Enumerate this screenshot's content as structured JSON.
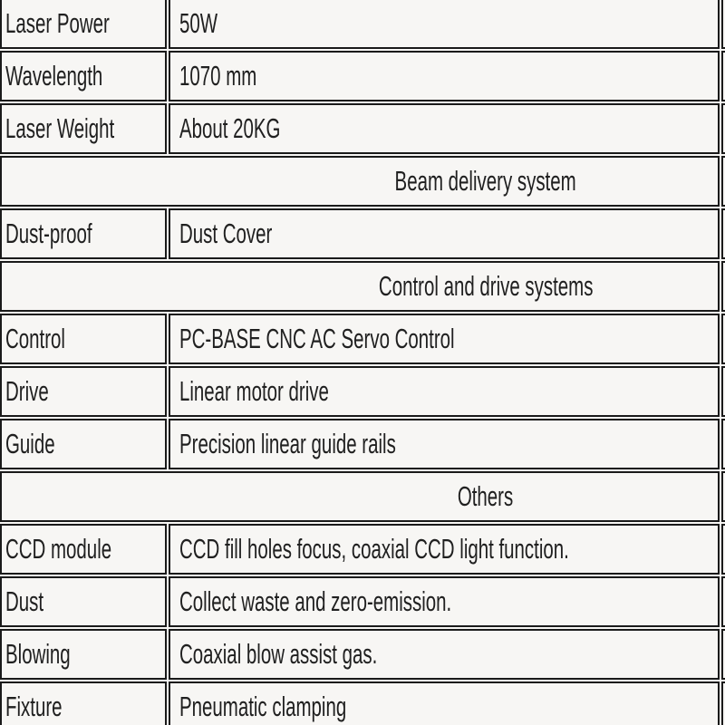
{
  "colors": {
    "background": "#f7f6f4",
    "border": "#1a1a1a",
    "text": "#202020"
  },
  "table": {
    "rows": [
      {
        "type": "spec",
        "label": "Laser Power",
        "value": "50W"
      },
      {
        "type": "spec",
        "label": "Wavelength",
        "value": "1070 mm"
      },
      {
        "type": "spec",
        "label": "Laser Weight",
        "value": "About 20KG"
      },
      {
        "type": "section",
        "title": "Beam delivery system"
      },
      {
        "type": "spec",
        "label": "Dust-proof",
        "value": "Dust Cover"
      },
      {
        "type": "section",
        "title": "Control and drive systems"
      },
      {
        "type": "spec",
        "label": "Control",
        "value": "PC-BASE CNC AC Servo Control"
      },
      {
        "type": "spec",
        "label": "Drive",
        "value": "Linear motor drive"
      },
      {
        "type": "spec",
        "label": "Guide",
        "value": "Precision linear guide rails"
      },
      {
        "type": "section",
        "title": "Others"
      },
      {
        "type": "spec",
        "label": "CCD module",
        "value": "CCD fill holes focus, coaxial CCD light function."
      },
      {
        "type": "spec",
        "label": "Dust",
        "value": "Collect waste and zero-emission."
      },
      {
        "type": "spec",
        "label": "Blowing",
        "value": "Coaxial blow assist gas."
      },
      {
        "type": "spec",
        "label": "Fixture",
        "value": "Pneumatic clamping"
      }
    ]
  }
}
